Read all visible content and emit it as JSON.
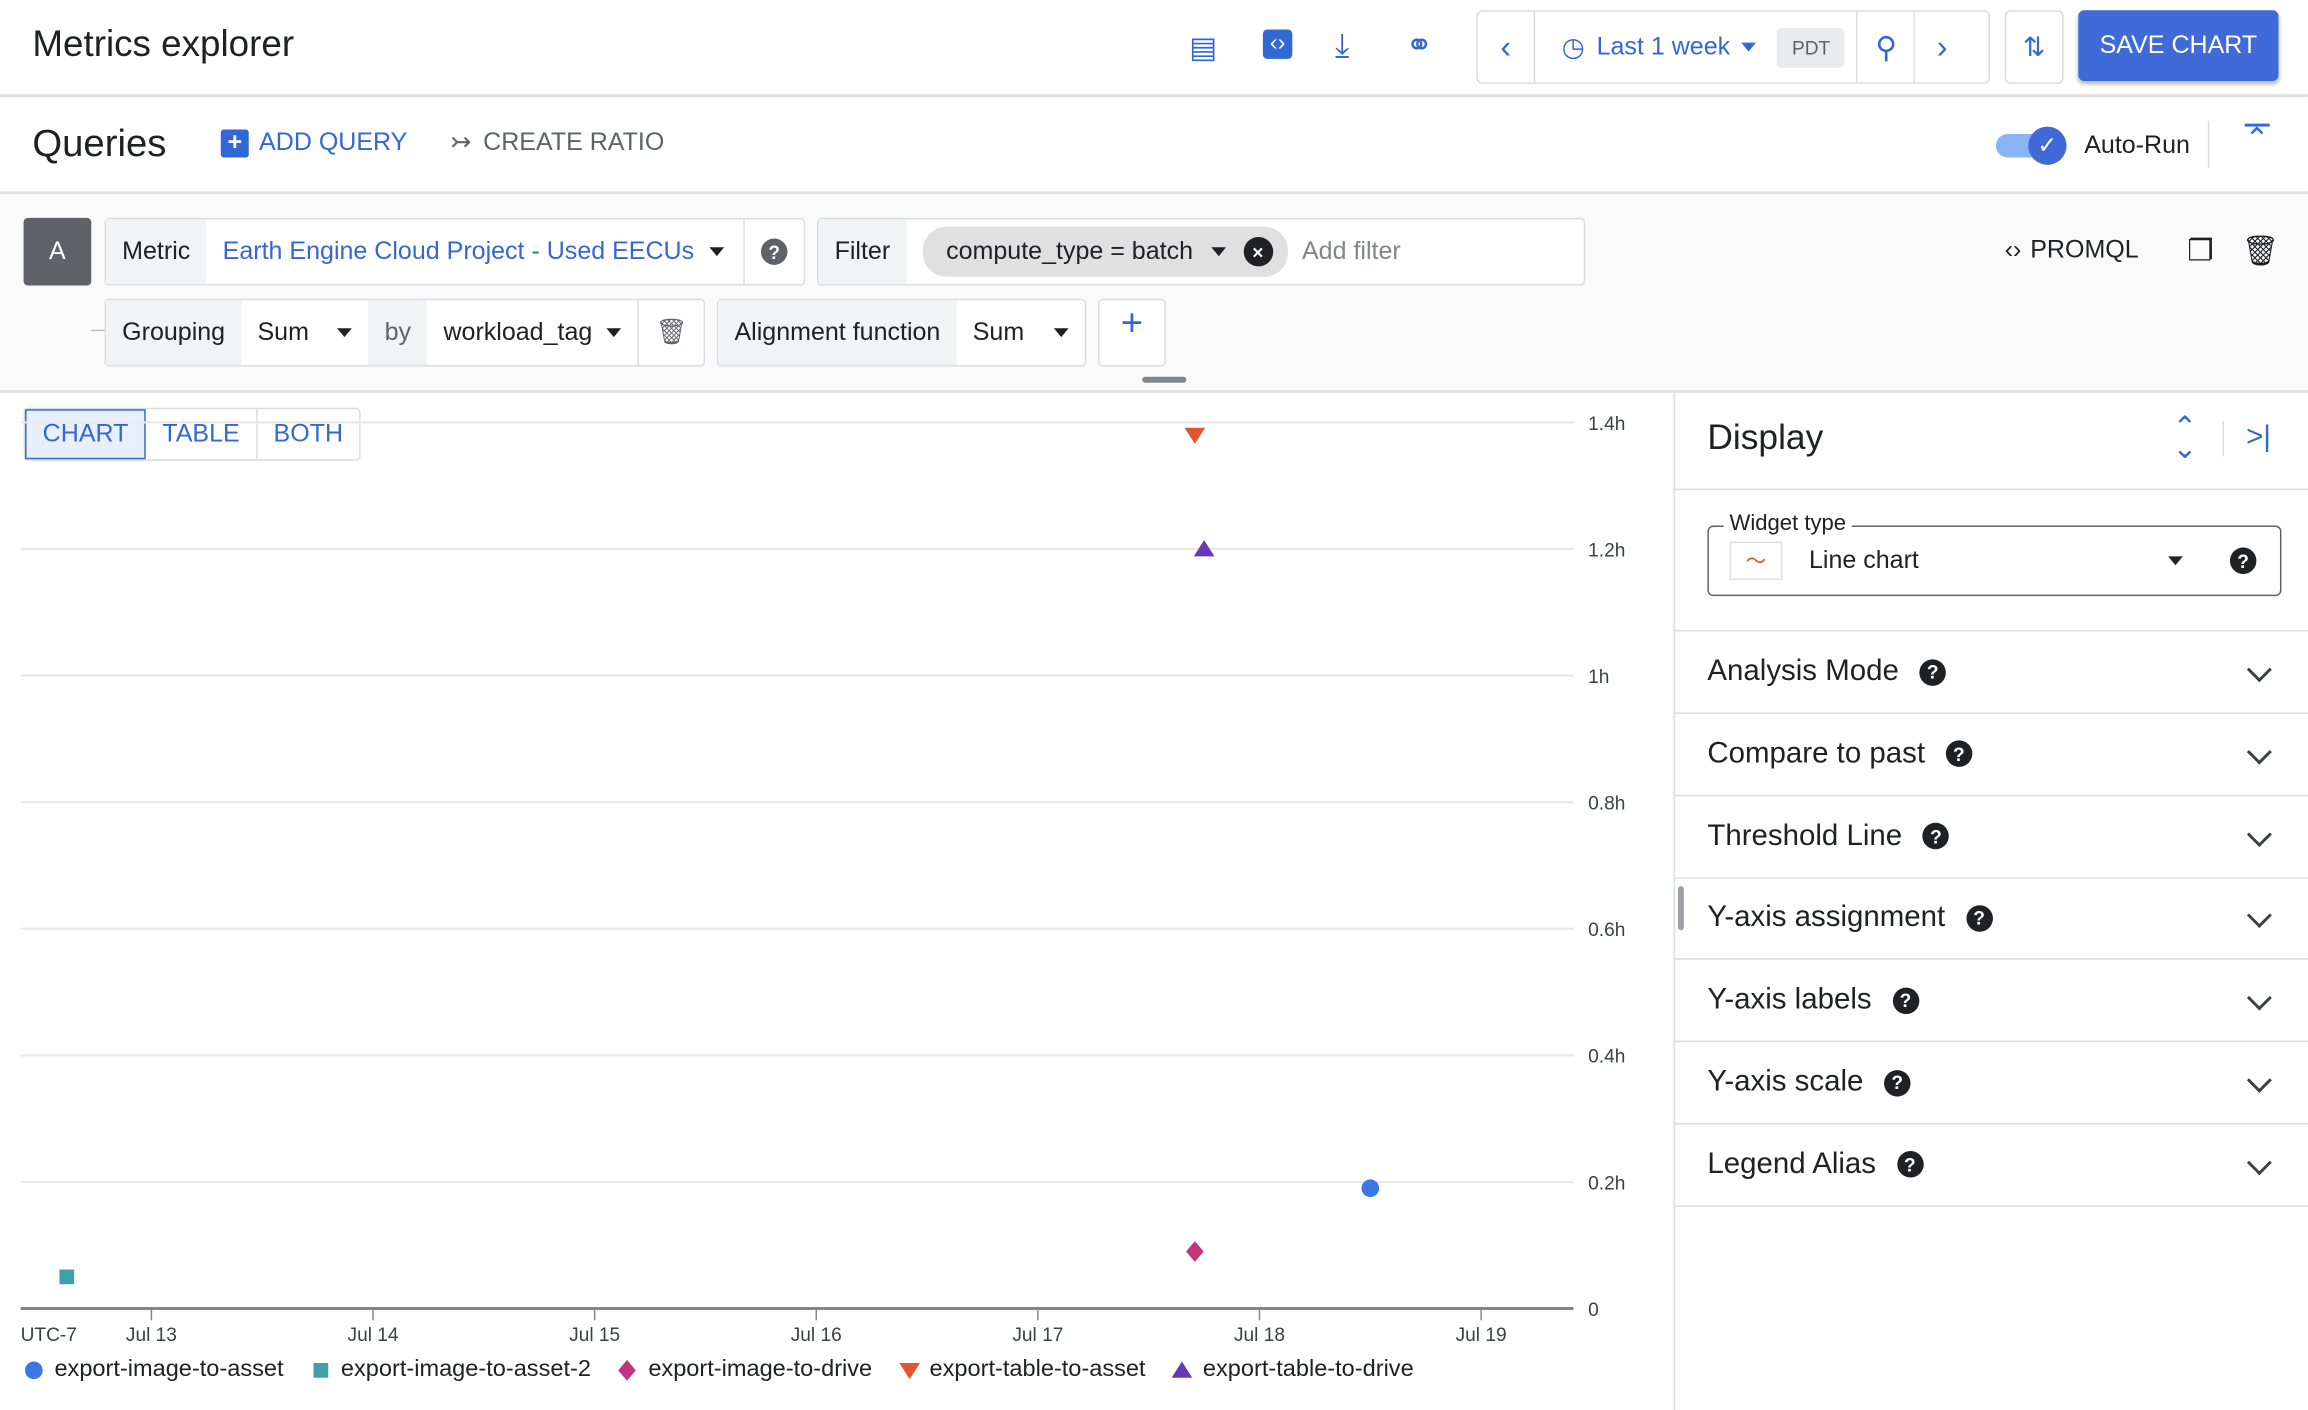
{
  "header": {
    "title": "Metrics explorer",
    "time_range": "Last 1 week",
    "timezone": "PDT",
    "save_label": "SAVE CHART",
    "icons": [
      "feedback-icon",
      "code-icon",
      "download-icon",
      "link-icon",
      "chevron-left-icon",
      "clock-icon",
      "zoom-out-icon",
      "chevron-right-icon",
      "sync-off-icon"
    ]
  },
  "queries": {
    "title": "Queries",
    "add_query": "ADD QUERY",
    "create_ratio": "CREATE RATIO",
    "auto_run": "Auto-Run",
    "auto_run_on": true
  },
  "query": {
    "letter": "A",
    "metric_label": "Metric",
    "metric_value": "Earth Engine Cloud Project - Used EECUs",
    "filter_label": "Filter",
    "filter_chip": "compute_type = batch",
    "filter_placeholder": "Add filter",
    "promql": "PROMQL",
    "grouping_label": "Grouping",
    "grouping_value": "Sum",
    "by_label": "by",
    "by_value": "workload_tag",
    "alignment_label": "Alignment function",
    "alignment_value": "Sum"
  },
  "view_tabs": [
    {
      "label": "CHART",
      "selected": true
    },
    {
      "label": "TABLE",
      "selected": false
    },
    {
      "label": "BOTH",
      "selected": false
    }
  ],
  "display": {
    "title": "Display",
    "widget_type_label": "Widget type",
    "widget_type_value": "Line chart",
    "sections": [
      "Analysis Mode",
      "Compare to past",
      "Threshold Line",
      "Y-axis assignment",
      "Y-axis labels",
      "Y-axis scale",
      "Legend Alias"
    ]
  },
  "chart_data": {
    "type": "scatter",
    "xlabel": "",
    "ylabel": "",
    "timezone_label": "UTC-7",
    "x_ticks": [
      "Jul 13",
      "Jul 14",
      "Jul 15",
      "Jul 16",
      "Jul 17",
      "Jul 18",
      "Jul 19"
    ],
    "y_ticks": [
      "0",
      "0.2h",
      "0.4h",
      "0.6h",
      "0.8h",
      "1h",
      "1.2h",
      "1.4h"
    ],
    "xlim": [
      "Jul 12 09:50",
      "Jul 19 10:00"
    ],
    "ylim": [
      0,
      1.4
    ],
    "y_unit": "h",
    "grid": true,
    "legend": "bottom",
    "series": [
      {
        "name": "export-image-to-asset",
        "color": "#3b78e7",
        "marker": "circle",
        "points": [
          {
            "x": "Jul 18 12:00",
            "y": 0.19
          }
        ]
      },
      {
        "name": "export-image-to-asset-2",
        "color": "#3ea0a8",
        "marker": "square",
        "points": [
          {
            "x": "Jul 12 14:50",
            "y": 0.05
          }
        ]
      },
      {
        "name": "export-image-to-drive",
        "color": "#c2347e",
        "marker": "diamond",
        "points": [
          {
            "x": "Jul 17 17:00",
            "y": 0.09
          }
        ]
      },
      {
        "name": "export-table-to-asset",
        "color": "#e0562e",
        "marker": "triangle-down",
        "points": [
          {
            "x": "Jul 17 17:00",
            "y": 1.38
          }
        ]
      },
      {
        "name": "export-table-to-drive",
        "color": "#6a35b8",
        "marker": "triangle-up",
        "points": [
          {
            "x": "Jul 17 18:00",
            "y": 1.2
          }
        ]
      }
    ]
  }
}
